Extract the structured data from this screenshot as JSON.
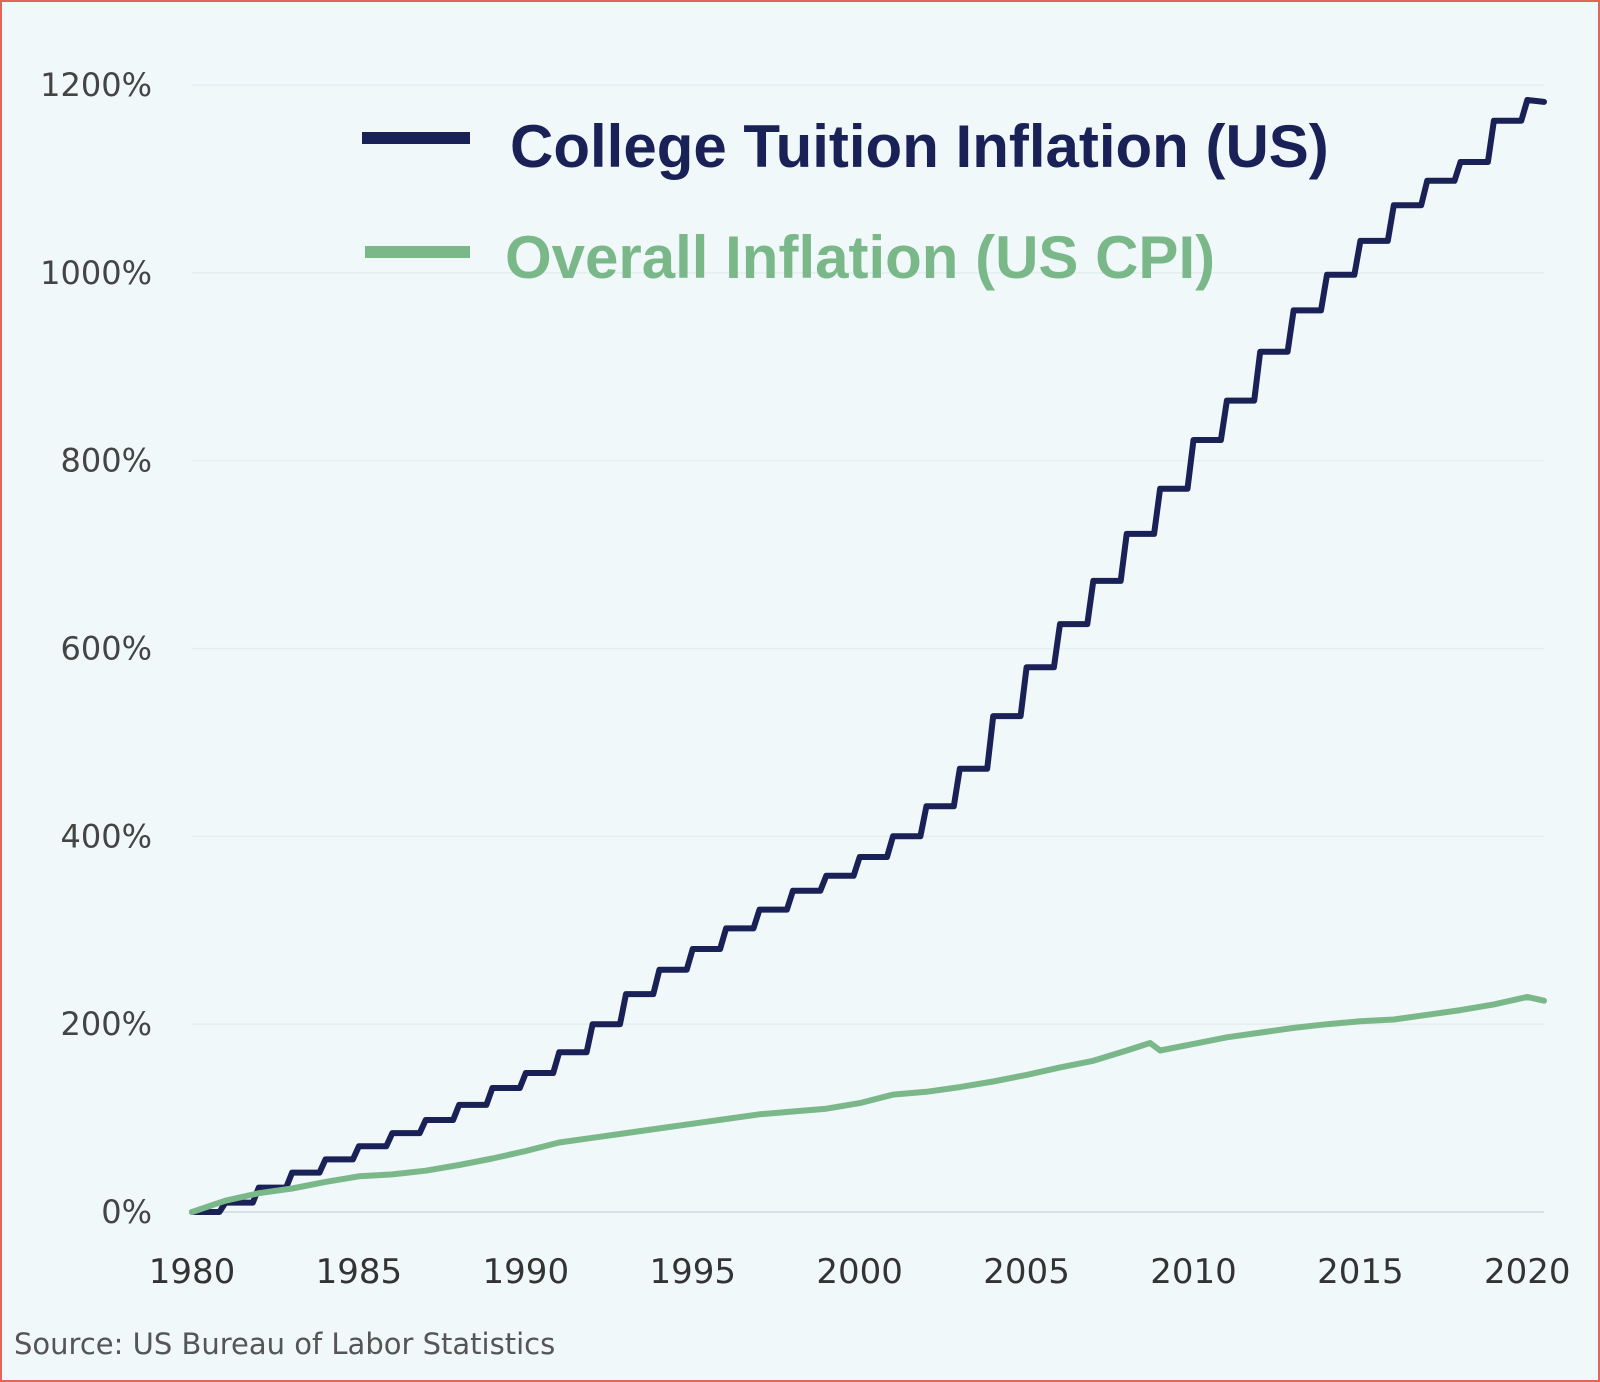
{
  "chart_data": {
    "type": "line",
    "title": "",
    "xlabel": "",
    "ylabel": "",
    "xlim": [
      1980,
      2020.5
    ],
    "ylim": [
      0,
      1200
    ],
    "x_ticks": [
      "1980",
      "1985",
      "1990",
      "1995",
      "2000",
      "2005",
      "2010",
      "2015",
      "2020"
    ],
    "y_ticks": [
      "0%",
      "200%",
      "400%",
      "600%",
      "800%",
      "1000%",
      "1200%"
    ],
    "grid": "horizontal",
    "legend_position": "top-left",
    "series": [
      {
        "name": "College Tuition Inflation (US)",
        "color": "#1a2157",
        "x": [
          1980,
          1981,
          1982,
          1983,
          1984,
          1985,
          1986,
          1987,
          1988,
          1989,
          1990,
          1991,
          1992,
          1993,
          1994,
          1995,
          1996,
          1997,
          1998,
          1999,
          2000,
          2001,
          2002,
          2003,
          2004,
          2005,
          2006,
          2007,
          2008,
          2009,
          2010,
          2011,
          2012,
          2013,
          2014,
          2015,
          2016,
          2017,
          2018,
          2019,
          2020,
          2020.5
        ],
        "values": [
          0,
          10,
          26,
          42,
          56,
          70,
          84,
          98,
          114,
          132,
          148,
          170,
          200,
          232,
          258,
          280,
          302,
          322,
          342,
          358,
          378,
          400,
          432,
          472,
          528,
          580,
          626,
          672,
          722,
          770,
          822,
          864,
          916,
          960,
          998,
          1034,
          1072,
          1098,
          1118,
          1162,
          1184,
          1182
        ]
      },
      {
        "name": "Overall Inflation (US CPI)",
        "color": "#7ab88a",
        "x": [
          1980,
          1981,
          1982,
          1983,
          1984,
          1985,
          1986,
          1987,
          1988,
          1989,
          1990,
          1991,
          1992,
          1993,
          1994,
          1995,
          1996,
          1997,
          1998,
          1999,
          2000,
          2001,
          2002,
          2003,
          2004,
          2005,
          2006,
          2007,
          2008,
          2008.7,
          2009,
          2010,
          2011,
          2012,
          2013,
          2014,
          2015,
          2016,
          2017,
          2018,
          2019,
          2020,
          2020.5
        ],
        "values": [
          0,
          12,
          20,
          25,
          32,
          38,
          40,
          44,
          50,
          57,
          65,
          74,
          79,
          84,
          89,
          94,
          99,
          104,
          107,
          110,
          116,
          125,
          128,
          133,
          139,
          146,
          154,
          161,
          172,
          180,
          172,
          179,
          186,
          191,
          196,
          200,
          203,
          205,
          210,
          215,
          221,
          229,
          225
        ]
      }
    ]
  },
  "source": "Source: US Bureau of Labor Statistics"
}
